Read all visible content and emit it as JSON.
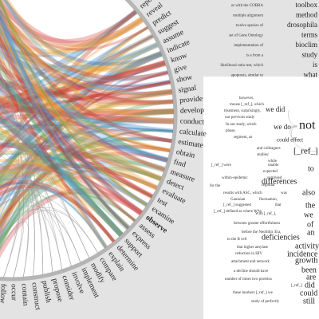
{
  "radial_verbs": [
    "report",
    "reveal",
    "predict",
    "suggest",
    "assume",
    "indicate",
    "know",
    "give",
    "show",
    "signal",
    "provide",
    "develop",
    "conduct",
    "calculate",
    "estimate",
    "obtain",
    "find",
    "measure",
    "detect",
    "evaluate",
    "test",
    "examine",
    "observe",
    "assess",
    "express",
    "support",
    "determine",
    "explain",
    "compare",
    "modify",
    "implement",
    "involve",
    "consider",
    "propose",
    "publish",
    "construct",
    "contain",
    "occur",
    "follow"
  ],
  "highlighted_verb": "observe",
  "concordance": [
    {
      "context": "or with the COBRA",
      "word": "toolbox"
    },
    {
      "context": "multiple alignment",
      "word": "method"
    },
    {
      "context": "twelve species of",
      "word": "drosophila"
    },
    {
      "context": "set of Gene Ontology",
      "word": "terms"
    },
    {
      "context": "implementation of",
      "word": "bioclim"
    },
    {
      "context": "is a from a",
      "word": "study"
    },
    {
      "context": "likelihood ratio test, which",
      "word": "is"
    },
    {
      "context": "apoptosis, similar to",
      "word": "what"
    }
  ],
  "word_tree": {
    "root": "not",
    "key_words": [
      "we did",
      "we do",
      "could effect",
      "[_ref_]",
      "to",
      "differences",
      "also",
      "the",
      "we",
      "of",
      "an",
      "deficiencies",
      "activity",
      "incidence",
      "growth",
      "been",
      "are",
      "did",
      "could",
      "still"
    ],
    "context_phrases": [
      "however,",
      "mouse [_ref_], which",
      "treatment, surprisingly,",
      "our previous study",
      "In our study, which",
      "phase,",
      "segment, as",
      "and colleagues",
      "studies:",
      "while",
      "[_ref_] were",
      "unable",
      "expected",
      "surprised",
      "within-epidemic",
      "regional",
      "for the",
      "results with ASC, which",
      "was",
      "Gaussian",
      "fluctuation,",
      "[_ref_] suggested",
      "that",
      "[_ref_] defined as where W*a",
      "With [_ref_],",
      "between greater effortfulness",
      "before the Neolithic Era,",
      "to the B cell",
      "that higher amylase",
      "reduction in HIV",
      "attachment and network",
      "a decline should have",
      "number of times two proteins",
      "[_ref_]",
      "these markers [_ref_] we",
      "study of perfectly"
    ]
  }
}
